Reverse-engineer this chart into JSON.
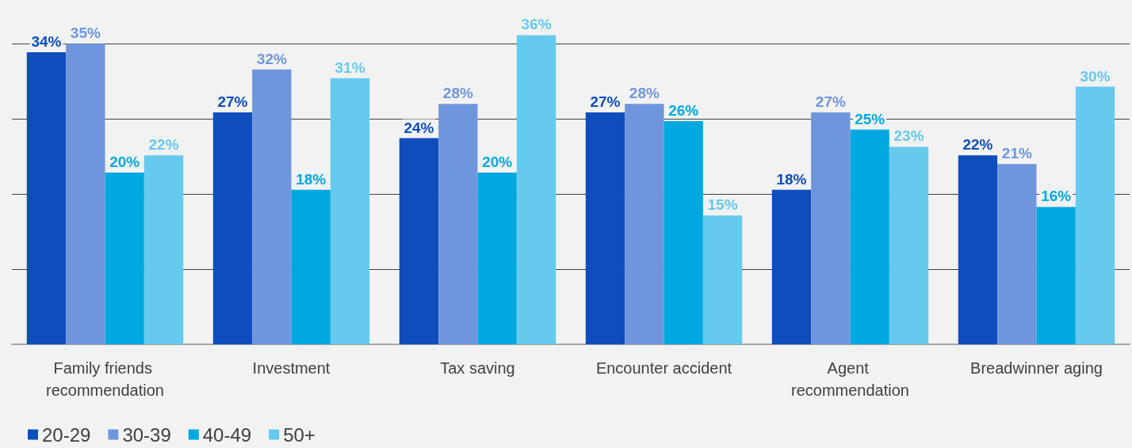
{
  "chart_data": {
    "type": "bar",
    "categories": [
      "Family friends recommendation",
      "Investment",
      "Tax saving",
      "Encounter accident",
      "Agent recommendation",
      "Breadwinner aging"
    ],
    "series": [
      {
        "name": "20-29",
        "color": "#0f4dbc",
        "values": [
          34,
          27,
          24,
          27,
          18,
          22
        ],
        "value_labels": [
          "34%",
          "27%",
          "24%",
          "27%",
          "18%",
          "22%"
        ]
      },
      {
        "name": "30-39",
        "color": "#6f96dc",
        "values": [
          35,
          32,
          28,
          28,
          27,
          21
        ],
        "value_labels": [
          "35%",
          "32%",
          "28%",
          "28%",
          "27%",
          "21%"
        ]
      },
      {
        "name": "40-49",
        "color": "#00a8e0",
        "values": [
          20,
          18,
          20,
          26,
          25,
          16
        ],
        "value_labels": [
          "20%",
          "18%",
          "20%",
          "26%",
          "25%",
          "16%"
        ]
      },
      {
        "name": "50+",
        "color": "#66c9ee",
        "values": [
          22,
          31,
          36,
          15,
          23,
          30
        ],
        "value_labels": [
          "22%",
          "31%",
          "36%",
          "15%",
          "23%",
          "30%"
        ]
      }
    ],
    "yticks": [
      {
        "value": 0,
        "label": null
      },
      {
        "value": 8.75,
        "label": null
      },
      {
        "value": 17.5,
        "label": null
      },
      {
        "value": 26.25,
        "label": null
      },
      {
        "value": 35,
        "label": null
      }
    ],
    "grid": "y",
    "legend": "bottom left",
    "tick_labels": "x"
  }
}
